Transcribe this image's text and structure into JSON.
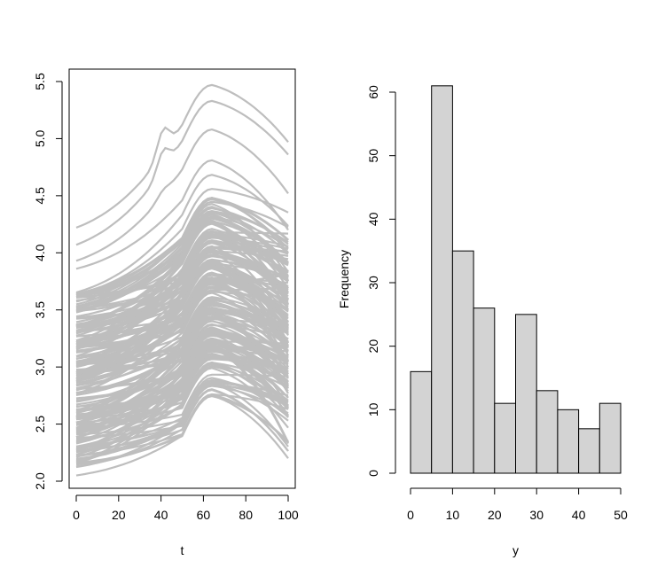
{
  "chart_data": [
    {
      "type": "line",
      "title": "",
      "xlabel": "t",
      "ylabel": "",
      "xlim": [
        0,
        100
      ],
      "ylim": [
        2.0,
        5.5
      ],
      "xticks": [
        0,
        20,
        40,
        60,
        80,
        100
      ],
      "xtick_labels": [
        "0",
        "20",
        "40",
        "60",
        "80",
        "100"
      ],
      "yticks": [
        2.0,
        2.5,
        3.0,
        3.5,
        4.0,
        4.5,
        5.0,
        5.5
      ],
      "ytick_labels": [
        "2.0",
        "2.5",
        "3.0",
        "3.5",
        "4.0",
        "4.5",
        "5.0",
        "5.5"
      ],
      "line_color": "#bebebe",
      "grid": false,
      "series_description": "Approximately 200 grey functional curves over t in [0,100], starting between 2.05 and 4.25 at t=0, peaking near t=62-65 between about 2.75 and 5.47, and ending between 2.2 and 4.95 at t=100.",
      "representative_series": [
        {
          "name": "curve-top",
          "x": [
            0,
            20,
            40,
            45,
            50,
            65,
            80,
            100
          ],
          "y": [
            4.22,
            4.45,
            5.18,
            5.1,
            5.15,
            5.47,
            5.35,
            4.97
          ]
        },
        {
          "name": "curve-2",
          "x": [
            0,
            20,
            40,
            45,
            50,
            65,
            80,
            100
          ],
          "y": [
            4.07,
            4.3,
            4.78,
            4.72,
            4.95,
            5.32,
            5.15,
            4.85
          ]
        },
        {
          "name": "curve-3",
          "x": [
            0,
            20,
            40,
            50,
            65,
            80,
            100
          ],
          "y": [
            3.93,
            4.1,
            4.45,
            4.75,
            5.08,
            4.95,
            4.5
          ]
        },
        {
          "name": "curve-4",
          "x": [
            0,
            20,
            40,
            50,
            65,
            80,
            100
          ],
          "y": [
            3.85,
            3.98,
            4.3,
            4.5,
            4.8,
            4.62,
            4.2
          ]
        },
        {
          "name": "curve-bottom",
          "x": [
            0,
            20,
            40,
            50,
            65,
            80,
            100
          ],
          "y": [
            2.05,
            2.06,
            2.12,
            2.3,
            2.75,
            2.55,
            2.2
          ]
        }
      ]
    },
    {
      "type": "bar",
      "chart_subtype": "histogram",
      "title": "",
      "xlabel": "y",
      "ylabel": "Frequency",
      "xlim": [
        0,
        50
      ],
      "ylim": [
        0,
        61
      ],
      "bin_edges": [
        0,
        5,
        10,
        15,
        20,
        25,
        30,
        35,
        40,
        45,
        50
      ],
      "values": [
        16,
        61,
        35,
        26,
        11,
        25,
        13,
        10,
        7,
        11
      ],
      "xticks": [
        0,
        10,
        20,
        30,
        40,
        50
      ],
      "xtick_labels": [
        "0",
        "10",
        "20",
        "30",
        "40",
        "50"
      ],
      "yticks": [
        0,
        10,
        20,
        30,
        40,
        50,
        60
      ],
      "ytick_labels": [
        "0",
        "10",
        "20",
        "30",
        "40",
        "50",
        "60"
      ],
      "bar_color": "#d3d3d3",
      "edge_color": "#000000",
      "grid": false
    }
  ]
}
